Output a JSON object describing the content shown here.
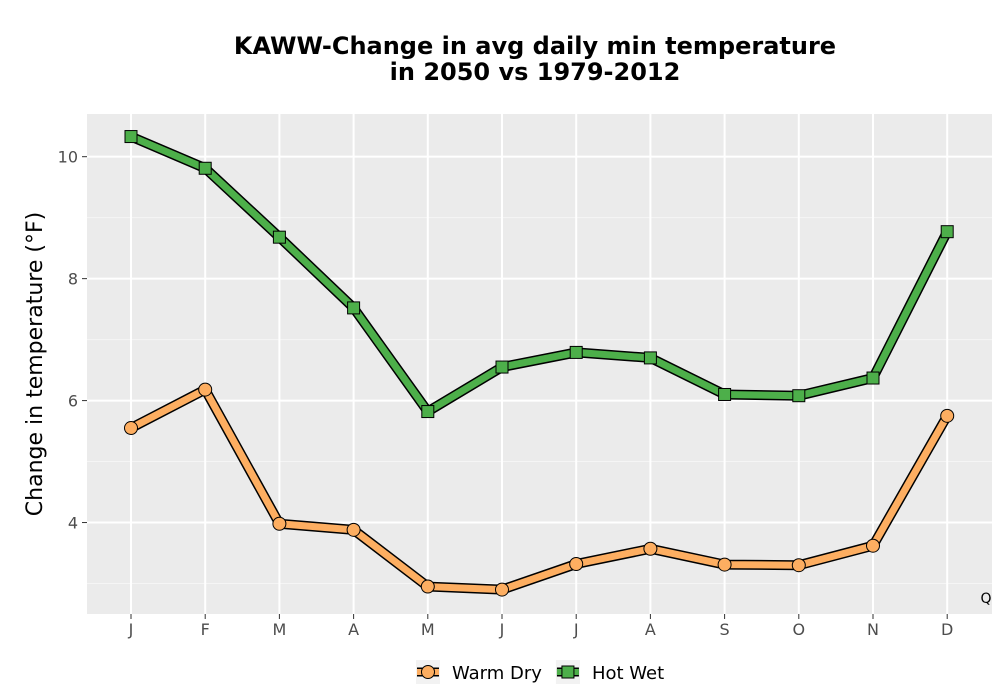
{
  "chart_data": {
    "type": "line",
    "title_line1": "KAWW-Change in avg daily min temperature",
    "title_line2": "in 2050 vs 1979-2012",
    "xlabel": "",
    "ylabel": "Change in temperature (°F)",
    "categories": [
      "J",
      "F",
      "M",
      "A",
      "M",
      "J",
      "J",
      "A",
      "S",
      "O",
      "N",
      "D"
    ],
    "ylim": [
      2.5,
      10.7
    ],
    "yticks": [
      4,
      6,
      8,
      10
    ],
    "grid": true,
    "legend_position": "bottom",
    "corner_label": "Q",
    "series": [
      {
        "name": "Warm Dry",
        "marker": "circle",
        "color": "#fdae61",
        "values": [
          5.55,
          6.18,
          3.98,
          3.88,
          2.95,
          2.9,
          3.32,
          3.57,
          3.31,
          3.3,
          3.62,
          5.75
        ]
      },
      {
        "name": "Hot Wet",
        "marker": "square",
        "color": "#4daf4a",
        "values": [
          10.33,
          9.81,
          8.68,
          7.52,
          5.82,
          6.55,
          6.79,
          6.7,
          6.1,
          6.08,
          6.37,
          8.77
        ]
      }
    ]
  }
}
